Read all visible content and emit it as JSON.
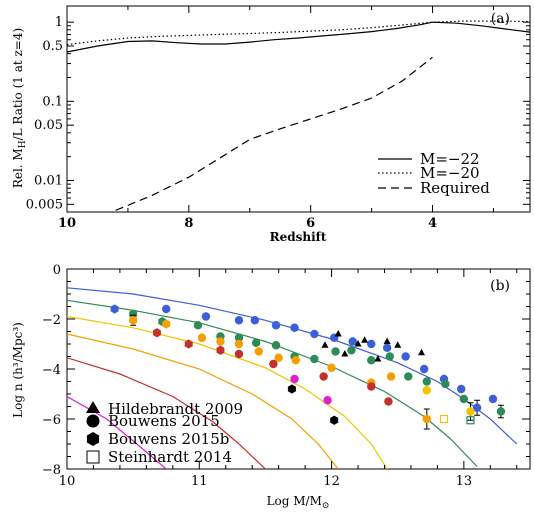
{
  "chart_data": [
    {
      "panel": "(a)",
      "type": "line",
      "xlabel": "Redshift",
      "ylabel": "Rel. M_H/L Ratio (1 at z=4)",
      "ylabel_main": "Rel. M",
      "ylabel_sub": "H",
      "ylabel_rest": "/L Ratio (1 at z=4)",
      "xlim": [
        10,
        2.4
      ],
      "ylim": [
        0.004,
        1.6
      ],
      "yscale": "log",
      "x_ticks": [
        "10",
        "8",
        "6",
        "4"
      ],
      "y_ticks": [
        "1",
        "0.5",
        "0.1",
        "0.05",
        "0.01",
        "0.005"
      ],
      "legend_position": "bottom-right",
      "series": [
        {
          "name": "M=−22",
          "style": "solid",
          "x": [
            10,
            9.5,
            9.0,
            8.6,
            8.2,
            7.8,
            7.4,
            7.0,
            6.6,
            6.2,
            5.8,
            5.4,
            5.0,
            4.6,
            4.2,
            4.0,
            3.6,
            3.2,
            2.8,
            2.4
          ],
          "y": [
            0.42,
            0.5,
            0.57,
            0.58,
            0.55,
            0.53,
            0.53,
            0.56,
            0.6,
            0.63,
            0.67,
            0.71,
            0.76,
            0.83,
            0.93,
            1.0,
            0.97,
            0.9,
            0.82,
            0.75
          ]
        },
        {
          "name": "M=−20",
          "style": "dotted",
          "x": [
            10,
            9.5,
            9.0,
            8.5,
            8.0,
            7.5,
            7.0,
            6.5,
            6.0,
            5.5,
            5.0,
            4.5,
            4.0,
            3.5,
            3.0,
            2.4
          ],
          "y": [
            0.52,
            0.58,
            0.63,
            0.66,
            0.68,
            0.7,
            0.72,
            0.74,
            0.77,
            0.8,
            0.85,
            0.92,
            1.0,
            1.03,
            1.03,
            1.02
          ]
        },
        {
          "name": "Required",
          "style": "dashed",
          "x": [
            9.2,
            8.6,
            8.0,
            7.5,
            7.0,
            6.5,
            6.0,
            5.5,
            5.0,
            4.5,
            4.0
          ],
          "y": [
            0.0042,
            0.0065,
            0.011,
            0.019,
            0.033,
            0.045,
            0.06,
            0.08,
            0.11,
            0.18,
            0.36
          ]
        }
      ]
    },
    {
      "panel": "(b)",
      "type": "scatter",
      "xlabel": "Log M/M⊙",
      "xlabel_main": "Log M/M",
      "xlabel_sym": "⊙",
      "ylabel": "Log n (h³/Mpc³)",
      "xlim": [
        10,
        13.5
      ],
      "ylim": [
        -8,
        0
      ],
      "x_ticks": [
        "10",
        "11",
        "12",
        "13"
      ],
      "y_ticks": [
        "0",
        "−2",
        "−4",
        "−6",
        "−8"
      ],
      "legend_position": "bottom-left",
      "legend": [
        {
          "marker": "triangle",
          "label": "Hildebrandt 2009"
        },
        {
          "marker": "circle",
          "label": "Bouwens 2015"
        },
        {
          "marker": "hexagon",
          "label": "Bouwens 2015b"
        },
        {
          "marker": "open-square",
          "label": "Steinhardt 2014"
        }
      ],
      "curves": [
        {
          "color": "#3a5fd9",
          "x": [
            10,
            10.5,
            11,
            11.5,
            12,
            12.5,
            12.8,
            13,
            13.2,
            13.4
          ],
          "y": [
            -0.75,
            -1.0,
            -1.45,
            -2.05,
            -2.8,
            -3.75,
            -4.5,
            -5.2,
            -6.0,
            -7.0
          ]
        },
        {
          "color": "#2e8b57",
          "x": [
            10,
            10.5,
            11,
            11.5,
            12,
            12.4,
            12.7,
            12.9,
            13.1
          ],
          "y": [
            -1.25,
            -1.65,
            -2.15,
            -2.9,
            -3.9,
            -4.9,
            -5.9,
            -6.8,
            -7.9
          ]
        },
        {
          "color": "#f5c400",
          "x": [
            10,
            10.5,
            11,
            11.5,
            11.8,
            12.1,
            12.3,
            12.42
          ],
          "y": [
            -1.9,
            -2.35,
            -3.0,
            -3.95,
            -4.8,
            -5.9,
            -7.0,
            -8.0
          ]
        },
        {
          "color": "#f59f00",
          "x": [
            10,
            10.5,
            11,
            11.4,
            11.7,
            11.9,
            12.05
          ],
          "y": [
            -2.6,
            -3.2,
            -4.0,
            -5.0,
            -6.0,
            -7.0,
            -8.0
          ]
        },
        {
          "color": "#c4302b",
          "x": [
            10,
            10.4,
            10.8,
            11.1,
            11.3,
            11.5
          ],
          "y": [
            -3.55,
            -4.2,
            -5.1,
            -6.1,
            -7.0,
            -8.0
          ]
        },
        {
          "color": "#e020c8",
          "x": [
            10,
            10.3,
            10.55,
            10.75
          ],
          "y": [
            -5.1,
            -6.0,
            -7.1,
            -8.0
          ]
        }
      ],
      "points": [
        {
          "m": "hexagon",
          "c": "#3a5fd9",
          "x": 10.36,
          "y": -1.6
        },
        {
          "m": "circle",
          "c": "#3a5fd9",
          "x": 10.75,
          "y": -1.6
        },
        {
          "m": "circle",
          "c": "#3a5fd9",
          "x": 11.05,
          "y": -1.9
        },
        {
          "m": "circle",
          "c": "#3a5fd9",
          "x": 11.3,
          "y": -2.05
        },
        {
          "m": "circle",
          "c": "#3a5fd9",
          "x": 11.42,
          "y": -2.05
        },
        {
          "m": "circle",
          "c": "#3a5fd9",
          "x": 11.58,
          "y": -2.25
        },
        {
          "m": "circle",
          "c": "#3a5fd9",
          "x": 11.72,
          "y": -2.35
        },
        {
          "m": "circle",
          "c": "#3a5fd9",
          "x": 11.87,
          "y": -2.6
        },
        {
          "m": "circle",
          "c": "#3a5fd9",
          "x": 12.02,
          "y": -2.75
        },
        {
          "m": "circle",
          "c": "#3a5fd9",
          "x": 12.16,
          "y": -2.9
        },
        {
          "m": "circle",
          "c": "#3a5fd9",
          "x": 12.3,
          "y": -3.0
        },
        {
          "m": "circle",
          "c": "#3a5fd9",
          "x": 12.42,
          "y": -3.15
        },
        {
          "m": "circle",
          "c": "#3a5fd9",
          "x": 12.56,
          "y": -3.5
        },
        {
          "m": "circle",
          "c": "#3a5fd9",
          "x": 12.7,
          "y": -4.0
        },
        {
          "m": "circle",
          "c": "#3a5fd9",
          "x": 12.85,
          "y": -4.4
        },
        {
          "m": "circle",
          "c": "#3a5fd9",
          "x": 12.98,
          "y": -4.8
        },
        {
          "m": "circle",
          "c": "#3a5fd9",
          "x": 13.1,
          "y": -5.55,
          "e": 0.3
        },
        {
          "m": "circle",
          "c": "#3a5fd9",
          "x": 13.22,
          "y": -5.2
        },
        {
          "m": "hexagon",
          "c": "#2e8b57",
          "x": 10.5,
          "y": -1.8
        },
        {
          "m": "hexagon",
          "c": "#2e8b57",
          "x": 10.72,
          "y": -2.1
        },
        {
          "m": "circle",
          "c": "#2e8b57",
          "x": 10.99,
          "y": -2.25
        },
        {
          "m": "circle",
          "c": "#2e8b57",
          "x": 11.16,
          "y": -2.7
        },
        {
          "m": "circle",
          "c": "#2e8b57",
          "x": 11.3,
          "y": -2.75
        },
        {
          "m": "circle",
          "c": "#2e8b57",
          "x": 11.43,
          "y": -2.95
        },
        {
          "m": "circle",
          "c": "#2e8b57",
          "x": 11.58,
          "y": -3.05
        },
        {
          "m": "circle",
          "c": "#2e8b57",
          "x": 11.72,
          "y": -3.5
        },
        {
          "m": "circle",
          "c": "#2e8b57",
          "x": 11.87,
          "y": -3.6
        },
        {
          "m": "circle",
          "c": "#2e8b57",
          "x": 12.03,
          "y": -3.3
        },
        {
          "m": "circle",
          "c": "#2e8b57",
          "x": 12.15,
          "y": -3.25
        },
        {
          "m": "circle",
          "c": "#2e8b57",
          "x": 12.3,
          "y": -3.65
        },
        {
          "m": "circle",
          "c": "#2e8b57",
          "x": 12.44,
          "y": -3.5
        },
        {
          "m": "circle",
          "c": "#2e8b57",
          "x": 12.58,
          "y": -4.3
        },
        {
          "m": "circle",
          "c": "#2e8b57",
          "x": 12.72,
          "y": -4.5
        },
        {
          "m": "circle",
          "c": "#2e8b57",
          "x": 12.86,
          "y": -4.6
        },
        {
          "m": "circle",
          "c": "#2e8b57",
          "x": 13.0,
          "y": -5.2
        },
        {
          "m": "circle",
          "c": "#2e8b57",
          "x": 13.28,
          "y": -5.7,
          "e": 0.25
        },
        {
          "m": "hexagon",
          "c": "#f59f00",
          "x": 10.5,
          "y": -2.05,
          "e": 0.2
        },
        {
          "m": "hexagon",
          "c": "#f59f00",
          "x": 10.75,
          "y": -2.2
        },
        {
          "m": "circle",
          "c": "#f59f00",
          "x": 11.02,
          "y": -2.75
        },
        {
          "m": "circle",
          "c": "#f59f00",
          "x": 11.16,
          "y": -2.9
        },
        {
          "m": "circle",
          "c": "#f59f00",
          "x": 11.3,
          "y": -3.0
        },
        {
          "m": "circle",
          "c": "#f59f00",
          "x": 11.45,
          "y": -3.3
        },
        {
          "m": "circle",
          "c": "#f59f00",
          "x": 11.6,
          "y": -3.55
        },
        {
          "m": "circle",
          "c": "#f59f00",
          "x": 11.73,
          "y": -3.65
        },
        {
          "m": "circle",
          "c": "#f59f00",
          "x": 12.0,
          "y": -3.95
        },
        {
          "m": "circle",
          "c": "#f59f00",
          "x": 12.3,
          "y": -4.55
        },
        {
          "m": "circle",
          "c": "#f59f00",
          "x": 12.45,
          "y": -4.3
        },
        {
          "m": "circle",
          "c": "#f59f00",
          "x": 12.72,
          "y": -6.0,
          "e": 0.4
        },
        {
          "m": "circle",
          "c": "#f5c400",
          "x": 12.72,
          "y": -4.85
        },
        {
          "m": "circle",
          "c": "#f5c400",
          "x": 13.05,
          "y": -5.7,
          "e": 0.35
        },
        {
          "m": "open-square",
          "c": "#f5c400",
          "x": 12.85,
          "y": -6.0
        },
        {
          "m": "open-square",
          "c": "#2e8b57",
          "x": 13.05,
          "y": -6.05
        },
        {
          "m": "hexagon",
          "c": "#c4302b",
          "x": 10.68,
          "y": -2.55
        },
        {
          "m": "hexagon",
          "c": "#c4302b",
          "x": 10.92,
          "y": -3.0
        },
        {
          "m": "hexagon",
          "c": "#c4302b",
          "x": 11.16,
          "y": -3.25
        },
        {
          "m": "circle",
          "c": "#c4302b",
          "x": 11.3,
          "y": -3.4
        },
        {
          "m": "circle",
          "c": "#c4302b",
          "x": 11.56,
          "y": -3.8
        },
        {
          "m": "circle",
          "c": "#c4302b",
          "x": 11.94,
          "y": -4.3
        },
        {
          "m": "circle",
          "c": "#c4302b",
          "x": 12.3,
          "y": -4.7
        },
        {
          "m": "circle",
          "c": "#c4302b",
          "x": 12.43,
          "y": -5.3
        },
        {
          "m": "circle",
          "c": "#e020c8",
          "x": 11.72,
          "y": -4.4
        },
        {
          "m": "circle",
          "c": "#e020c8",
          "x": 11.97,
          "y": -5.25
        },
        {
          "m": "hexagon",
          "c": "#000000",
          "x": 11.7,
          "y": -4.8
        },
        {
          "m": "hexagon",
          "c": "#000000",
          "x": 12.02,
          "y": -6.05
        },
        {
          "m": "triangle",
          "c": "#000000",
          "x": 11.95,
          "y": -3.05
        },
        {
          "m": "triangle",
          "c": "#000000",
          "x": 12.05,
          "y": -2.6
        },
        {
          "m": "triangle",
          "c": "#000000",
          "x": 12.1,
          "y": -3.4
        },
        {
          "m": "triangle",
          "c": "#000000",
          "x": 12.2,
          "y": -3.0
        },
        {
          "m": "triangle",
          "c": "#000000",
          "x": 12.25,
          "y": -2.85
        },
        {
          "m": "triangle",
          "c": "#000000",
          "x": 12.42,
          "y": -2.9
        },
        {
          "m": "triangle",
          "c": "#000000",
          "x": 12.5,
          "y": -3.05
        },
        {
          "m": "triangle",
          "c": "#000000",
          "x": 12.35,
          "y": -3.6
        },
        {
          "m": "triangle",
          "c": "#000000",
          "x": 12.68,
          "y": -3.35
        }
      ]
    }
  ]
}
